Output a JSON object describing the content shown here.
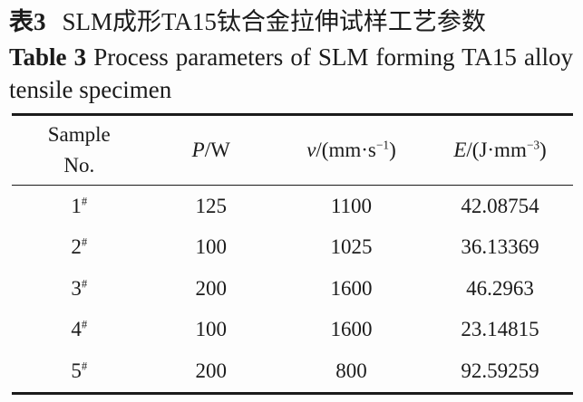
{
  "titles": {
    "zh_label": "表3",
    "zh_text": "SLM成形TA15钛合金拉伸试样工艺参数",
    "en_label": "Table 3",
    "en_line1": "Process parameters of SLM forming TA15 alloy",
    "en_line2": "tensile specimen"
  },
  "table": {
    "headers": {
      "sample_line1": "Sample",
      "sample_line2": "No.",
      "power": {
        "sym": "P",
        "pre": "/W",
        "sup": "",
        "post": ""
      },
      "speed": {
        "sym": "v",
        "pre": "/(mm·s",
        "sup": "−1",
        "post": ")"
      },
      "energy": {
        "sym": "E",
        "pre": "/(J·mm",
        "sup": "−3",
        "post": ")"
      }
    },
    "rows": [
      {
        "no": "1",
        "no_sup": "#",
        "p": "125",
        "v": "1100",
        "e": "42.08754"
      },
      {
        "no": "2",
        "no_sup": "#",
        "p": "100",
        "v": "1025",
        "e": "36.13369"
      },
      {
        "no": "3",
        "no_sup": "#",
        "p": "200",
        "v": "1600",
        "e": "46.2963"
      },
      {
        "no": "4",
        "no_sup": "#",
        "p": "100",
        "v": "1600",
        "e": "23.14815"
      },
      {
        "no": "5",
        "no_sup": "#",
        "p": "200",
        "v": "800",
        "e": "92.59259"
      }
    ]
  },
  "colors": {
    "text": "#1b1b1b",
    "rule": "#1b1b1b",
    "background": "#fdfdfd"
  }
}
